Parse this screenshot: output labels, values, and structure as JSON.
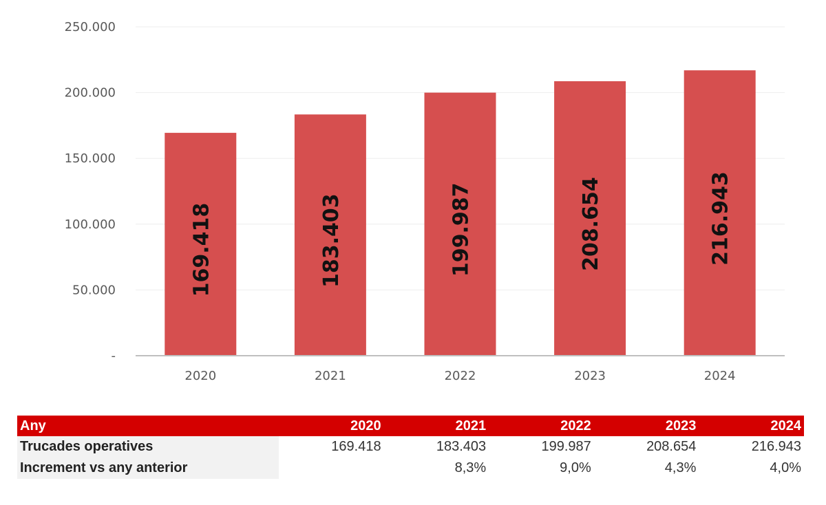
{
  "chart_data": {
    "type": "bar",
    "categories": [
      "2020",
      "2021",
      "2022",
      "2023",
      "2024"
    ],
    "values": [
      169418,
      183403,
      199987,
      208654,
      216943
    ],
    "data_labels": [
      "169.418",
      "183.403",
      "199.987",
      "208.654",
      "216.943"
    ],
    "yticks": [
      0,
      50000,
      100000,
      150000,
      200000,
      250000
    ],
    "ytick_labels": [
      "-",
      "50.000",
      "100.000",
      "150.000",
      "200.000",
      "250.000"
    ],
    "ylim": [
      0,
      250000
    ],
    "grid": true,
    "title": "",
    "xlabel": "",
    "ylabel": "",
    "colors": {
      "bar": "#d64f4f",
      "grid": "#eeeeee",
      "axis": "#bfbfbf"
    }
  },
  "table": {
    "header": {
      "label": "Any",
      "years": [
        "2020",
        "2021",
        "2022",
        "2023",
        "2024"
      ]
    },
    "rows": [
      {
        "label": "Trucades operatives",
        "values": [
          "169.418",
          "183.403",
          "199.987",
          "208.654",
          "216.943"
        ]
      },
      {
        "label": "Increment vs any anterior",
        "values": [
          "",
          "8,3%",
          "9,0%",
          "4,3%",
          "4,0%"
        ]
      }
    ],
    "colors": {
      "header_bg": "#d40000",
      "header_text": "#ffffff"
    }
  }
}
